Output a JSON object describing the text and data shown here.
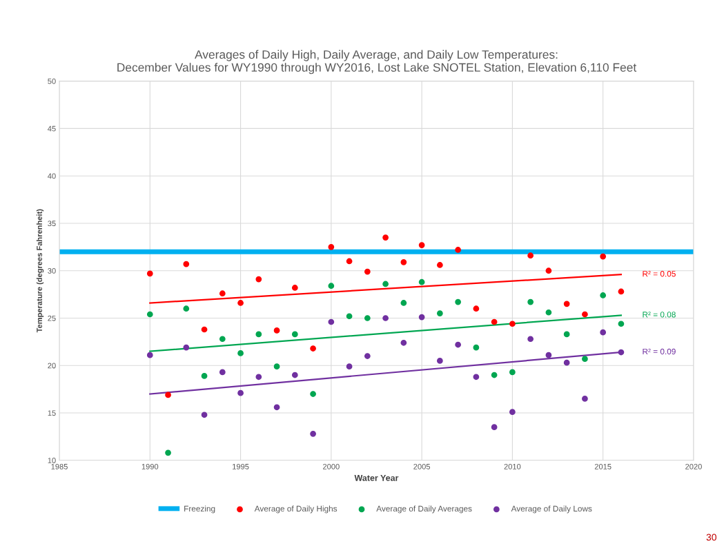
{
  "chart_data": {
    "type": "scatter",
    "title": "Averages of Daily High, Daily Average, and Daily Low Temperatures:\nDecember Values for WY1990 through WY2016, Lost Lake SNOTEL Station, Elevation 6,110 Feet",
    "xlabel": "Water Year",
    "ylabel": "Temperature (degrees Fahrenheit)",
    "x": [
      "1990",
      "1991",
      "1992",
      "1993",
      "1994",
      "1995",
      "1996",
      "1997",
      "1998",
      "1999",
      "2000",
      "2001",
      "2002",
      "2003",
      "2004",
      "2005",
      "2006",
      "2007",
      "2008",
      "2009",
      "2010",
      "2011",
      "2012",
      "2013",
      "2014",
      "2015",
      "2016"
    ],
    "series": [
      {
        "name": "Average of Daily Highs",
        "color": "#ff0000",
        "values": [
          29.7,
          16.9,
          30.7,
          23.8,
          27.6,
          26.6,
          29.1,
          23.7,
          28.2,
          21.8,
          32.5,
          31.0,
          29.9,
          33.5,
          30.9,
          32.7,
          30.6,
          32.2,
          26.0,
          24.6,
          24.4,
          31.6,
          30.0,
          26.5,
          25.4,
          31.5,
          27.8
        ]
      },
      {
        "name": "Average of Daily Averages",
        "color": "#00a651",
        "values": [
          25.4,
          10.8,
          26.0,
          18.9,
          22.8,
          21.3,
          23.3,
          19.9,
          23.3,
          17.0,
          28.4,
          25.2,
          25.0,
          28.6,
          26.6,
          28.8,
          25.5,
          26.7,
          21.9,
          19.0,
          19.3,
          26.7,
          25.6,
          23.3,
          20.7,
          27.4,
          24.4
        ]
      },
      {
        "name": "Average of Daily Lows",
        "color": "#7030a0",
        "values": [
          21.1,
          null,
          21.9,
          14.8,
          19.3,
          17.1,
          18.8,
          15.6,
          19.0,
          12.8,
          24.6,
          19.9,
          21.0,
          25.0,
          22.4,
          25.1,
          20.5,
          22.2,
          18.8,
          13.5,
          15.1,
          22.8,
          21.1,
          20.3,
          16.5,
          23.5,
          21.4
        ]
      },
      {
        "type": "line",
        "color": "#ff0000",
        "marker": "none",
        "x": [
          "1990",
          "2016"
        ],
        "values": [
          26.6,
          29.6
        ]
      },
      {
        "type": "line",
        "color": "#00a651",
        "marker": "none",
        "x": [
          "1990",
          "2016"
        ],
        "values": [
          21.5,
          25.3
        ]
      },
      {
        "type": "line",
        "color": "#7030a0",
        "marker": "none",
        "x": [
          "1990",
          "2016"
        ],
        "values": [
          17.0,
          21.4
        ]
      }
    ],
    "ref_lines": [
      {
        "axis": "y",
        "value": 32,
        "label": "Freezing",
        "color": "#00b0f0"
      }
    ],
    "annotations": [
      {
        "text": "R² = 0.05",
        "x": "2016",
        "y": 29.6
      },
      {
        "text": "R² = 0.08",
        "x": "2016",
        "y": 25.3
      },
      {
        "text": "R² = 0.09",
        "x": "2016",
        "y": 21.4
      },
      "30"
    ],
    "xlim": [
      "1985",
      "2020"
    ],
    "xticks": [
      "1985",
      "1990",
      "1995",
      "2000",
      "2005",
      "2010",
      "2015",
      "2020"
    ],
    "ylim": [
      10,
      50
    ],
    "yticks": [
      10,
      15,
      20,
      25,
      30,
      35,
      40,
      45,
      50
    ],
    "grid": true,
    "legend": "bottom",
    "marker": "circle"
  }
}
